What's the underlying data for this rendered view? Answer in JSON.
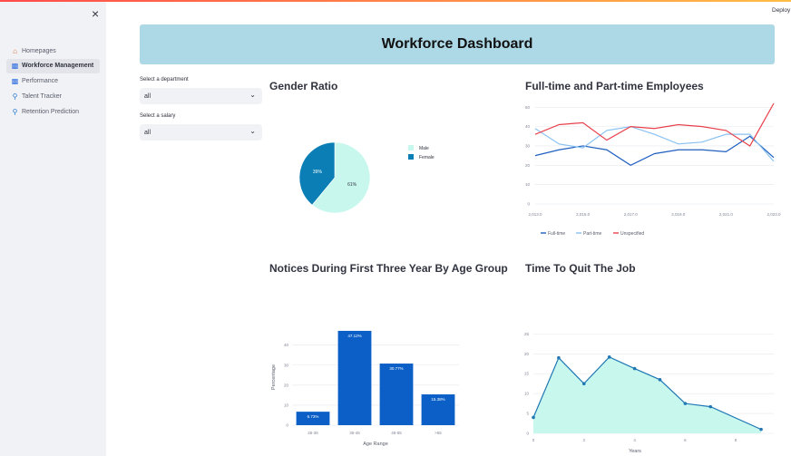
{
  "app": {
    "deploy_label": "Deploy",
    "close_glyph": "×"
  },
  "sidebar": {
    "items": [
      {
        "label": "Homepages",
        "icon": "house-icon",
        "active": false
      },
      {
        "label": "Workforce Management",
        "icon": "bar-chart-icon",
        "active": true
      },
      {
        "label": "Performance",
        "icon": "bar-chart-icon",
        "active": false
      },
      {
        "label": "Talent Tracker",
        "icon": "magnifier-icon",
        "active": false
      },
      {
        "label": "Retention Prediction",
        "icon": "magnifier-icon",
        "active": false
      }
    ]
  },
  "header": {
    "title": "Workforce Dashboard",
    "background": "#add8e6"
  },
  "filters": {
    "department": {
      "label": "Select a department",
      "value": "all"
    },
    "salary": {
      "label": "Select a salary",
      "value": "all"
    }
  },
  "sections": {
    "gender": "Gender Ratio",
    "employment": "Full-time and Part-time Employees",
    "notices": "Notices During First Three Year By Age Group",
    "quit": "Time To Quit The Job"
  },
  "chart_data": [
    {
      "type": "pie",
      "title": "Gender Ratio",
      "labels": [
        "Male",
        "Female"
      ],
      "values": [
        61,
        39
      ],
      "value_labels": [
        "61%",
        "39%"
      ],
      "colors": [
        "#c8f7ee",
        "#0b7fb5"
      ],
      "legend": "right"
    },
    {
      "type": "line",
      "title": "Full-time and Part-time Employees",
      "x": [
        2013,
        2014,
        2015,
        2016,
        2017,
        2018,
        2019,
        2020,
        2021,
        2022,
        2023
      ],
      "x_tick_labels": [
        "2,013.0",
        "2,015.0",
        "2,017.0",
        "2,019.0",
        "2,021.0",
        "2,023.0"
      ],
      "y_ticks": [
        "0",
        "10",
        "20",
        "30",
        "40",
        "50"
      ],
      "ylim": [
        0,
        52
      ],
      "grid": true,
      "legend": "bottom",
      "series": [
        {
          "name": "Full-time",
          "color": "#1f5fbf",
          "values": [
            25,
            28,
            30,
            28,
            20,
            26,
            28,
            28,
            27,
            35,
            24
          ]
        },
        {
          "name": "Part-time",
          "color": "#89c2f2",
          "values": [
            39,
            31,
            29,
            38,
            40,
            36,
            31,
            32,
            36,
            36,
            22
          ]
        },
        {
          "name": "Unspecified",
          "color": "#e8414b",
          "values": [
            36,
            41,
            42,
            33,
            40,
            39,
            41,
            40,
            38,
            30,
            52
          ]
        }
      ]
    },
    {
      "type": "bar",
      "title": "Notices During First Three Year By Age Group",
      "categories": [
        "26-35",
        "35-45",
        "45-55",
        ">55"
      ],
      "values": [
        6.73,
        47.12,
        30.77,
        15.38
      ],
      "value_labels": [
        "6.73%",
        "47.12%",
        "30.77%",
        "15.38%"
      ],
      "xlabel": "Age Range",
      "ylabel": "Percentage",
      "y_ticks": [
        "0",
        "10",
        "20",
        "30",
        "40"
      ],
      "ylim": [
        0,
        48
      ],
      "color": "#0b5fc7",
      "grid": true
    },
    {
      "type": "area",
      "title": "Time To Quit The Job",
      "x": [
        0,
        1,
        2,
        3,
        4,
        5,
        6,
        7,
        9
      ],
      "values": [
        4,
        19,
        12.5,
        19.2,
        16.3,
        13.5,
        7.5,
        6.7,
        1
      ],
      "xlabel": "Years",
      "x_ticks": [
        "0",
        "2",
        "4",
        "6",
        "8"
      ],
      "y_ticks": [
        "0",
        "5",
        "10",
        "15",
        "20",
        "25"
      ],
      "xlim": [
        0,
        9.5
      ],
      "ylim": [
        0,
        26
      ],
      "line_color": "#1f77b4",
      "fill_color": "#c8f7ee",
      "grid": true
    }
  ]
}
